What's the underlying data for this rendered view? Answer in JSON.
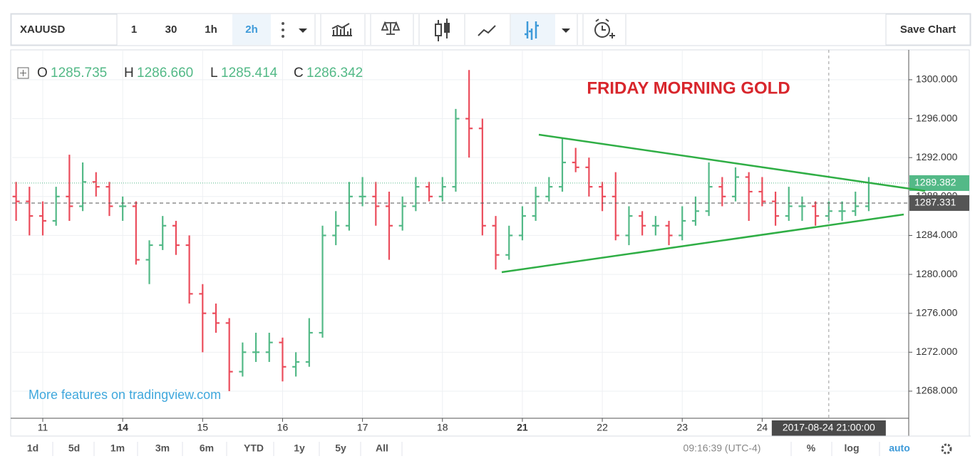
{
  "toolbar": {
    "symbol": "XAUUSD",
    "intervals": [
      "1",
      "30",
      "1h",
      "2h"
    ],
    "save": "Save Chart"
  },
  "legend": {
    "open": {
      "label": "O",
      "value": {
        "value": 1285.735,
        "label": "1285.735"
      }
    },
    "high": {
      "label": "H",
      "value": {
        "value": 1286.66,
        "label": "1286.660"
      }
    },
    "low": {
      "label": "L",
      "value": {
        "value": 1285.414,
        "label": "1285.414"
      }
    },
    "close": {
      "label": "C",
      "value": {
        "value": 1286.342,
        "label": "1286.342"
      }
    }
  },
  "chart_data": {
    "type": "ohlc",
    "annotation": "FRIDAY MORNING GOLD",
    "watermark": "More features on tradingview.com",
    "up_color": "#53b987",
    "down_color": "#eb4d5c",
    "open": [
      1288,
      1287.5,
      1286,
      1285.5,
      1288,
      1287,
      1289.5,
      1289,
      1287,
      1287,
      1281.5,
      1283,
      1285,
      1283,
      1278,
      1276,
      1275,
      1270,
      1272,
      1272,
      1273,
      1270.5,
      1271,
      1274,
      1284,
      1285,
      1288,
      1288,
      1287,
      1285,
      1287,
      1289,
      1288,
      1289,
      1296,
      1295,
      1285,
      1282,
      1284,
      1286,
      1288,
      1289,
      1291.5,
      1291,
      1289,
      1288,
      1284,
      1286,
      1285,
      1285,
      1284,
      1285.5,
      1286.5,
      1289,
      1288,
      1290,
      1288.5,
      1287.5,
      1286,
      1287,
      1287,
      1286,
      1286.5,
      1286.5,
      1287
    ],
    "high": [
      1289.5,
      1289,
      1287.5,
      1289,
      1292.3,
      1291.5,
      1290.5,
      1289.5,
      1288,
      1287.5,
      1283.5,
      1286,
      1285.5,
      1284,
      1279,
      1277,
      1275.5,
      1273,
      1274,
      1274,
      1273.5,
      1272,
      1275.5,
      1285,
      1286.5,
      1289.5,
      1290,
      1289.5,
      1288.5,
      1288,
      1290,
      1289.5,
      1290,
      1297,
      1301,
      1296,
      1286,
      1285,
      1287,
      1289,
      1290,
      1294,
      1293,
      1292,
      1289.5,
      1290.5,
      1287,
      1286.5,
      1286,
      1285.5,
      1287,
      1288,
      1291.5,
      1290,
      1291,
      1290.5,
      1290,
      1288.5,
      1289,
      1288,
      1287.5,
      1287.5,
      1287.5,
      1288.5,
      1290
    ],
    "low": [
      1285.5,
      1284,
      1284,
      1285,
      1285.5,
      1286.5,
      1288,
      1286,
      1285.5,
      1281,
      1279,
      1282.5,
      1282,
      1277,
      1272,
      1274,
      1268,
      1269.5,
      1271,
      1271,
      1269,
      1269.5,
      1270.5,
      1273.5,
      1283,
      1284.5,
      1287,
      1285,
      1281.5,
      1284.5,
      1286.5,
      1287.5,
      1287.5,
      1288.5,
      1292,
      1284,
      1280.5,
      1281.5,
      1283.5,
      1285.5,
      1287.5,
      1288.5,
      1290.5,
      1288,
      1286.5,
      1283.5,
      1283,
      1284,
      1284,
      1283,
      1283.5,
      1285,
      1286,
      1287,
      1287.5,
      1285.5,
      1287,
      1285,
      1285.5,
      1285.5,
      1285,
      1285.5,
      1285.5,
      1286,
      1286.5
    ],
    "close": [
      1287.5,
      1286,
      1285.5,
      1288,
      1287,
      1289.5,
      1289,
      1287,
      1287,
      1281.5,
      1283,
      1285,
      1283,
      1278,
      1276,
      1275,
      1270,
      1272,
      1272,
      1273,
      1270.5,
      1271,
      1274,
      1284,
      1285,
      1288,
      1288,
      1287,
      1285,
      1287,
      1289,
      1288,
      1289,
      1296,
      1295,
      1285,
      1282,
      1284,
      1286,
      1288,
      1289,
      1291.5,
      1291,
      1289,
      1288,
      1284,
      1286,
      1285,
      1285,
      1284,
      1285.5,
      1286.5,
      1289,
      1288,
      1290,
      1288.5,
      1287.5,
      1286,
      1287,
      1287,
      1286,
      1286.5,
      1286.5,
      1287,
      1289.4
    ],
    "xlim": [
      -0.3,
      67
    ],
    "xticks": [
      {
        "value": 2,
        "label": "11"
      },
      {
        "value": 8,
        "label": "14"
      },
      {
        "value": 14,
        "label": "15"
      },
      {
        "value": 20,
        "label": "16"
      },
      {
        "value": 26,
        "label": "17"
      },
      {
        "value": 32,
        "label": "18"
      },
      {
        "value": 38,
        "label": "21"
      },
      {
        "value": 44,
        "label": "22"
      },
      {
        "value": 50,
        "label": "23"
      },
      {
        "value": 56,
        "label": "24"
      }
    ],
    "ylim": [
      1265.36,
      1303.07
    ],
    "yticks": [
      {
        "value": 1268,
        "label": "1268.000"
      },
      {
        "value": 1272,
        "label": "1272.000"
      },
      {
        "value": 1276,
        "label": "1276.000"
      },
      {
        "value": 1280,
        "label": "1280.000"
      },
      {
        "value": 1284,
        "label": "1284.000"
      },
      {
        "value": 1288,
        "label": "1288.000"
      },
      {
        "value": 1292,
        "label": "1292.000"
      },
      {
        "value": 1296,
        "label": "1296.000"
      },
      {
        "value": 1300,
        "label": "1300.000"
      }
    ],
    "grid": true,
    "price_lines": [
      {
        "value": 1289.382,
        "color": "#53b987"
      },
      {
        "value": 1287.331,
        "color": "#555555"
      }
    ],
    "crosshair": {
      "x": 61,
      "label": "2017-08-24 21:00:00"
    }
  },
  "footer": {
    "ranges": [
      "1d",
      "5d",
      "1m",
      "3m",
      "6m",
      "YTD",
      "1y",
      "5y",
      "All"
    ],
    "clock": "09:16:39 (UTC-4)",
    "scales": [
      "%",
      "log",
      "auto"
    ]
  }
}
